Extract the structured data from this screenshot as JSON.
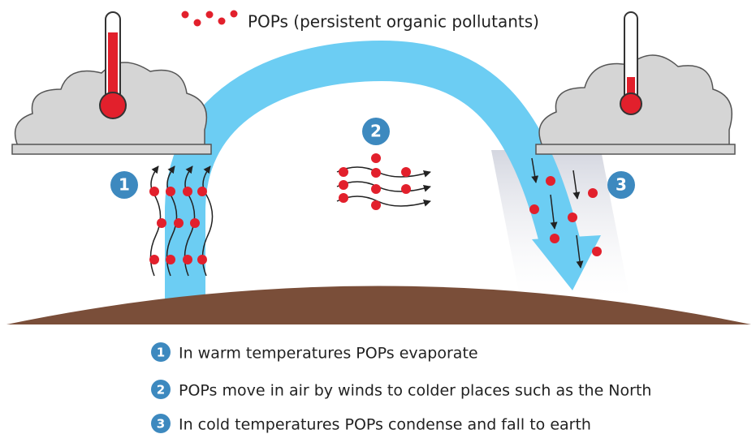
{
  "legend": "POPs (persistent organic pollutants)",
  "steps": [
    {
      "number": "1",
      "text": "In warm temperatures POPs evaporate"
    },
    {
      "number": "2",
      "text": "POPs move in air by winds to colder places such as the North"
    },
    {
      "number": "3",
      "text": "In cold temperatures POPs condense and fall to earth"
    }
  ]
}
